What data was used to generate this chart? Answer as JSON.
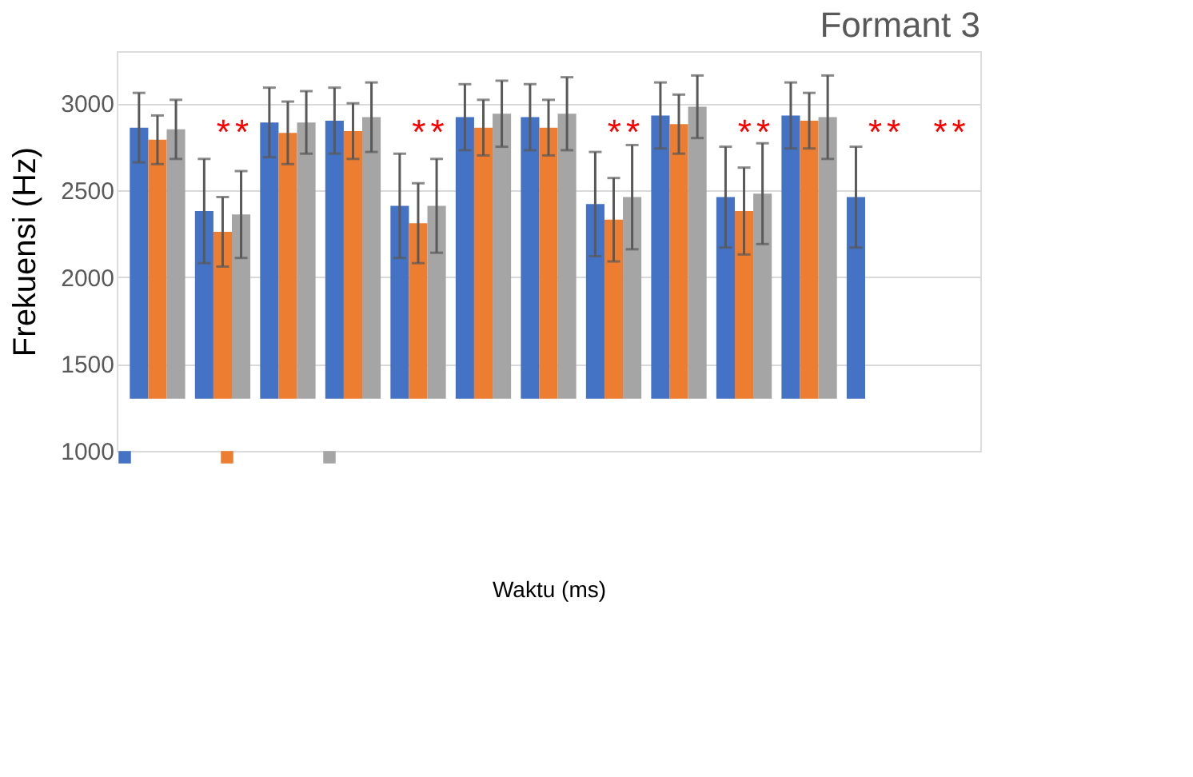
{
  "chart_data": {
    "type": "bar",
    "title": "Formant 3",
    "xlabel": "Waktu (ms)",
    "ylabel": "Frekuensi (Hz)",
    "categories": [
      null,
      null,
      null,
      null,
      null,
      null,
      null,
      null,
      null,
      null,
      null,
      null,
      null
    ],
    "series": [
      {
        "color": "#4472c4",
        "values": [
          1560,
          1080,
          1590,
          1600,
          1110,
          1620,
          1620,
          1120,
          1630,
          1160,
          1630,
          1160,
          null
        ],
        "base": [
          1300,
          1300,
          1300,
          1300,
          1300,
          1300,
          1300,
          1300,
          1300,
          1300,
          1300,
          1300,
          null
        ],
        "errors": [
          200,
          300,
          200,
          190,
          300,
          190,
          190,
          300,
          190,
          290,
          190,
          290,
          null
        ]
      },
      {
        "color": "#ed7d31",
        "values": [
          1490,
          960,
          1530,
          1540,
          1010,
          1560,
          1560,
          1030,
          1580,
          1080,
          1600,
          null,
          null
        ],
        "base": [
          1300,
          1300,
          1300,
          1300,
          1300,
          1300,
          1300,
          1300,
          1300,
          1300,
          1300,
          null,
          null
        ],
        "errors": [
          140,
          200,
          180,
          160,
          230,
          160,
          160,
          240,
          170,
          250,
          160,
          null,
          null
        ]
      },
      {
        "color": "#a5a5a5",
        "values": [
          1550,
          1060,
          1590,
          1620,
          1110,
          1640,
          1640,
          1160,
          1680,
          1180,
          1620,
          null,
          null
        ],
        "base": [
          1300,
          1300,
          1300,
          1300,
          1300,
          1300,
          1300,
          1300,
          1300,
          1300,
          1300,
          null,
          null
        ],
        "errors": [
          170,
          250,
          180,
          200,
          270,
          190,
          210,
          300,
          180,
          290,
          240,
          null,
          null
        ]
      }
    ],
    "ylim": [
      1000,
      3300
    ],
    "yticks": [
      1000,
      1500,
      2000,
      2500,
      3000
    ],
    "grid": "y",
    "tick_labels": "y",
    "annotations": [
      "*",
      "*",
      "*",
      "*",
      "*",
      "*",
      "*",
      "*",
      "*",
      "*",
      "*",
      "*"
    ]
  }
}
